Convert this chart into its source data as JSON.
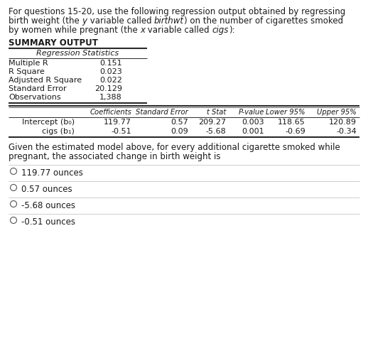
{
  "intro_line1": "For questions 15-20, use the following regression output obtained by regressing",
  "intro_line2_parts": [
    [
      "birth weight (the ",
      false
    ],
    [
      "y",
      true
    ],
    [
      " variable called ",
      false
    ],
    [
      "birthwt",
      true
    ],
    [
      ") on the number of cigarettes smoked",
      false
    ]
  ],
  "intro_line3_parts": [
    [
      "by women while pregnant (the ",
      false
    ],
    [
      "x",
      true
    ],
    [
      " variable called ",
      false
    ],
    [
      "cigs",
      true
    ],
    [
      "):",
      false
    ]
  ],
  "summary_label": "SUMMARY OUTPUT",
  "reg_stats_label": "Regression Statistics",
  "reg_stats": [
    [
      "Multiple R",
      "0.151"
    ],
    [
      "R Square",
      "0.023"
    ],
    [
      "Adjusted R Square",
      "0.022"
    ],
    [
      "Standard Error",
      "20.129"
    ],
    [
      "Observations",
      "1,388"
    ]
  ],
  "coeff_headers": [
    "",
    "Coefficients",
    "Standard Error",
    "t Stat",
    "P-value",
    "Lower 95%",
    "Upper 95%"
  ],
  "coeff_rows": [
    [
      "Intercept (b₀)",
      "119.77",
      "0.57",
      "209.27",
      "0.003",
      "118.65",
      "120.89"
    ],
    [
      "cigs (b₁)",
      "-0.51",
      "0.09",
      "-5.68",
      "0.001",
      "-0.69",
      "-0.34"
    ]
  ],
  "question_line1": "Given the estimated model above, for every additional cigarette smoked while",
  "question_line2": "pregnant, the associated change in birth weight is",
  "options": [
    "119.77 ounces",
    "0.57 ounces",
    "-5.68 ounces",
    "-0.51 ounces"
  ],
  "fs_body": 8.5,
  "fs_small": 8.0,
  "fs_bold": 8.5,
  "bg_color": "#ffffff",
  "text_color": "#1a1a1a",
  "line_color": "#2a2a2a",
  "sep_color": "#bbbbbb",
  "circle_color": "#555555"
}
